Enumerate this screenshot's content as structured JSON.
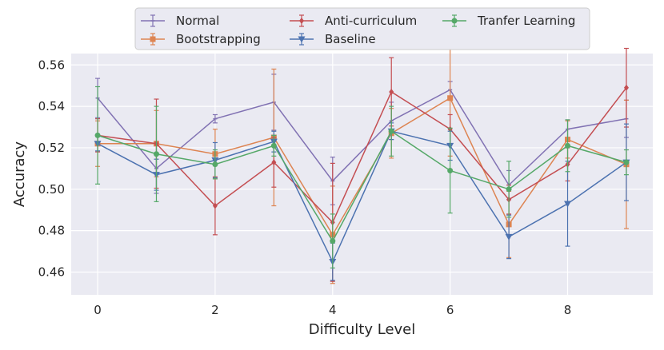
{
  "chart_data": {
    "type": "line",
    "title": "",
    "xlabel": "Difficulty Level",
    "ylabel": "Accuracy",
    "xlim": [
      -0.45,
      9.45
    ],
    "ylim": [
      0.449,
      0.5655
    ],
    "x": [
      0,
      1,
      2,
      3,
      4,
      5,
      6,
      7,
      8,
      9
    ],
    "xticks": [
      0,
      2,
      4,
      6,
      8
    ],
    "xtick_labels": [
      "0",
      "2",
      "4",
      "6",
      "8"
    ],
    "yticks": [
      0.46,
      0.48,
      0.5,
      0.52,
      0.54,
      0.56
    ],
    "ytick_labels": [
      "0.46",
      "0.48",
      "0.50",
      "0.52",
      "0.54",
      "0.56"
    ],
    "grid": true,
    "legend_position": "top-center",
    "series": [
      {
        "name": "Normal",
        "color": "#8172b3",
        "marker": "capline",
        "values": [
          0.544,
          0.51,
          0.534,
          0.542,
          0.504,
          0.533,
          0.548,
          0.502,
          0.529,
          0.534
        ],
        "errors": [
          0.0095,
          0.012,
          0.002,
          0.0135,
          0.0115,
          0.009,
          0.004,
          0.007,
          0.0045,
          0.009
        ]
      },
      {
        "name": "Bootstrapping",
        "color": "#dd8452",
        "marker": "square",
        "values": [
          0.522,
          0.522,
          0.517,
          0.525,
          0.478,
          0.527,
          0.544,
          0.483,
          0.524,
          0.512
        ],
        "errors": [
          0.011,
          0.016,
          0.012,
          0.033,
          0.0235,
          0.012,
          0.028,
          0.016,
          0.009,
          0.031
        ]
      },
      {
        "name": "Anti-curriculum",
        "color": "#c44e52",
        "marker": "diamond",
        "values": [
          0.526,
          0.522,
          0.492,
          0.513,
          0.484,
          0.547,
          0.529,
          0.495,
          0.512,
          0.549
        ],
        "errors": [
          0.008,
          0.0215,
          0.014,
          0.012,
          0.0285,
          0.0165,
          0.007,
          0.007,
          0.008,
          0.019
        ]
      },
      {
        "name": "Baseline",
        "color": "#4c72b0",
        "marker": "triangle-down",
        "values": [
          0.522,
          0.507,
          0.514,
          0.523,
          0.465,
          0.528,
          0.521,
          0.477,
          0.493,
          0.513
        ],
        "errors": [
          0.0035,
          0.0075,
          0.0085,
          0.005,
          0.009,
          0.004,
          0.007,
          0.0105,
          0.0205,
          0.0185
        ]
      },
      {
        "name": "Tranfer Learning",
        "color": "#55a868",
        "marker": "circle",
        "values": [
          0.526,
          0.517,
          0.512,
          0.521,
          0.475,
          0.528,
          0.509,
          0.5,
          0.521,
          0.513
        ],
        "errors": [
          0.0235,
          0.023,
          0.007,
          0.005,
          0.013,
          0.012,
          0.0205,
          0.0135,
          0.0125,
          0.006
        ]
      }
    ]
  }
}
